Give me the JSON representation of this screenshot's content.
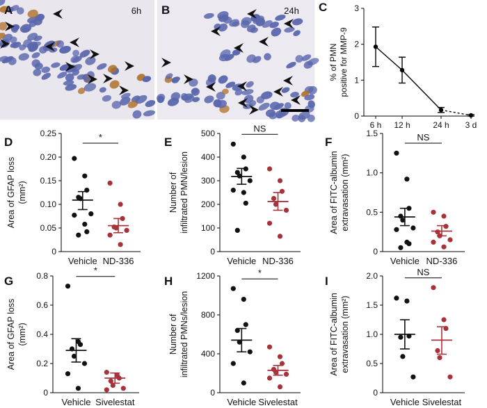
{
  "micrographs": [
    {
      "panel_label": "A",
      "time_label": "6h"
    },
    {
      "panel_label": "B",
      "time_label": "24h"
    }
  ],
  "colors": {
    "vehicle": "#111111",
    "treatment": "#a8323a",
    "nucleus": "#5a67ad",
    "stain": "#b0712a",
    "arrow": "#111111"
  },
  "chart_data": [
    {
      "panel": "C",
      "type": "line",
      "ylabel_lines": [
        "% of PMN",
        "positive for MMP-9"
      ],
      "xlabel": "",
      "x_tick_labels": [
        "6 h",
        "12 h",
        "24 h",
        "3 d"
      ],
      "ylim": [
        0,
        3
      ],
      "yticks": [
        0,
        1,
        2,
        3
      ],
      "series": [
        {
          "x": [
            0,
            1,
            2,
            3
          ],
          "mean": [
            1.93,
            1.28,
            0.17,
            0.02
          ],
          "err_low": [
            1.38,
            0.92,
            0.1,
            0.0
          ],
          "err_high": [
            2.48,
            1.64,
            0.24,
            0.04
          ],
          "dashed_last_segment": true
        }
      ]
    },
    {
      "panel": "D",
      "type": "scatter",
      "ylabel_lines": [
        "Area of GFAP loss",
        "(mm²)"
      ],
      "categories": [
        "Vehicle",
        "ND-336"
      ],
      "ylim": [
        0,
        0.25
      ],
      "yticks": [
        0,
        0.05,
        0.1,
        0.15,
        0.2,
        0.25
      ],
      "ytick_labels": [
        "0",
        "0.05",
        "0.10",
        "0.15",
        "0.20",
        "0.25"
      ],
      "significance": "*",
      "groups": [
        {
          "points": [
            0.197,
            0.16,
            0.13,
            0.115,
            0.112,
            0.08,
            0.077,
            0.058,
            0.042,
            0.035
          ],
          "mean": 0.109,
          "sem_low": 0.089,
          "sem_high": 0.127
        },
        {
          "points": [
            0.145,
            0.1,
            0.07,
            0.052,
            0.05,
            0.045,
            0.035,
            0.015
          ],
          "mean": 0.055,
          "sem_low": 0.04,
          "sem_high": 0.07
        }
      ]
    },
    {
      "panel": "E",
      "type": "scatter",
      "ylabel_lines": [
        "Number of",
        "infiltrated PMN/lesion"
      ],
      "categories": [
        "Vehicle",
        "ND-336"
      ],
      "ylim": [
        0,
        500
      ],
      "yticks": [
        0,
        100,
        200,
        300,
        400,
        500
      ],
      "ytick_labels": [
        "0",
        "100",
        "200",
        "300",
        "400",
        "500"
      ],
      "significance": "NS",
      "groups": [
        {
          "points": [
            455,
            400,
            350,
            335,
            320,
            300,
            260,
            250,
            205,
            90
          ],
          "mean": 318,
          "sem_low": 285,
          "sem_high": 352
        },
        {
          "points": [
            350,
            300,
            255,
            225,
            200,
            175,
            120,
            65
          ],
          "mean": 212,
          "sem_low": 175,
          "sem_high": 250
        }
      ]
    },
    {
      "panel": "F",
      "type": "scatter",
      "ylabel_lines": [
        "Area of FITC-albumin",
        "extravasation (mm²)"
      ],
      "categories": [
        "Vehicle",
        "ND-336"
      ],
      "ylim": [
        0,
        1.5
      ],
      "yticks": [
        0,
        0.5,
        1.0,
        1.5
      ],
      "ytick_labels": [
        "0",
        "0.5",
        "1.0",
        "1.5"
      ],
      "significance": "NS",
      "groups": [
        {
          "points": [
            1.25,
            0.92,
            0.55,
            0.45,
            0.4,
            0.3,
            0.28,
            0.12,
            0.1,
            0.05
          ],
          "mean": 0.44,
          "sem_low": 0.33,
          "sem_high": 0.55
        },
        {
          "points": [
            0.5,
            0.45,
            0.32,
            0.25,
            0.2,
            0.15,
            0.12,
            0.06
          ],
          "mean": 0.26,
          "sem_low": 0.2,
          "sem_high": 0.33
        }
      ]
    },
    {
      "panel": "G",
      "type": "scatter",
      "ylabel_lines": [
        "Area of GFAP loss",
        "(mm²)"
      ],
      "categories": [
        "Vehicle",
        "Sivelestat"
      ],
      "ylim": [
        0,
        0.8
      ],
      "yticks": [
        0,
        0.2,
        0.4,
        0.6,
        0.8
      ],
      "ytick_labels": [
        "0",
        "0.2",
        "0.4",
        "0.6",
        "0.8"
      ],
      "significance": "*",
      "groups": [
        {
          "points": [
            0.73,
            0.35,
            0.33,
            0.3,
            0.25,
            0.2,
            0.13,
            0.03
          ],
          "mean": 0.29,
          "sem_low": 0.21,
          "sem_high": 0.37
        },
        {
          "points": [
            0.14,
            0.12,
            0.1,
            0.08,
            0.05,
            0.03,
            0.02
          ],
          "mean": 0.1,
          "sem_low": 0.065,
          "sem_high": 0.135
        }
      ]
    },
    {
      "panel": "H",
      "type": "scatter",
      "ylabel_lines": [
        "Number of",
        "infiltrated PMNs/lesion"
      ],
      "categories": [
        "Vehicle",
        "Sivelestat"
      ],
      "ylim": [
        0,
        1200
      ],
      "yticks": [
        0,
        400,
        800,
        1200
      ],
      "ytick_labels": [
        "0",
        "400",
        "800",
        "1200"
      ],
      "significance": "*",
      "groups": [
        {
          "points": [
            1070,
            960,
            700,
            640,
            520,
            420,
            300,
            100
          ],
          "mean": 540,
          "sem_low": 420,
          "sem_high": 660
        },
        {
          "points": [
            470,
            370,
            300,
            240,
            210,
            190,
            150,
            60
          ],
          "mean": 230,
          "sem_low": 180,
          "sem_high": 280
        }
      ]
    },
    {
      "panel": "I",
      "type": "scatter",
      "ylabel_lines": [
        "Area of FITC-albumin",
        "extravasation (mm²)"
      ],
      "categories": [
        "Vehicle",
        "Sivelestat"
      ],
      "ylim": [
        0,
        2.0
      ],
      "yticks": [
        0,
        0.5,
        1.0,
        1.5,
        2.0
      ],
      "ytick_labels": [
        "0",
        "0.5",
        "1.0",
        "1.5",
        "2.0"
      ],
      "significance": "NS",
      "groups": [
        {
          "points": [
            1.62,
            1.57,
            0.97,
            0.95,
            0.62,
            0.27
          ],
          "mean": 1.0,
          "sem_low": 0.75,
          "sem_high": 1.25
        },
        {
          "points": [
            1.8,
            1.25,
            1.1,
            0.72,
            0.6,
            0.27
          ],
          "mean": 0.9,
          "sem_low": 0.66,
          "sem_high": 1.13
        }
      ]
    }
  ]
}
